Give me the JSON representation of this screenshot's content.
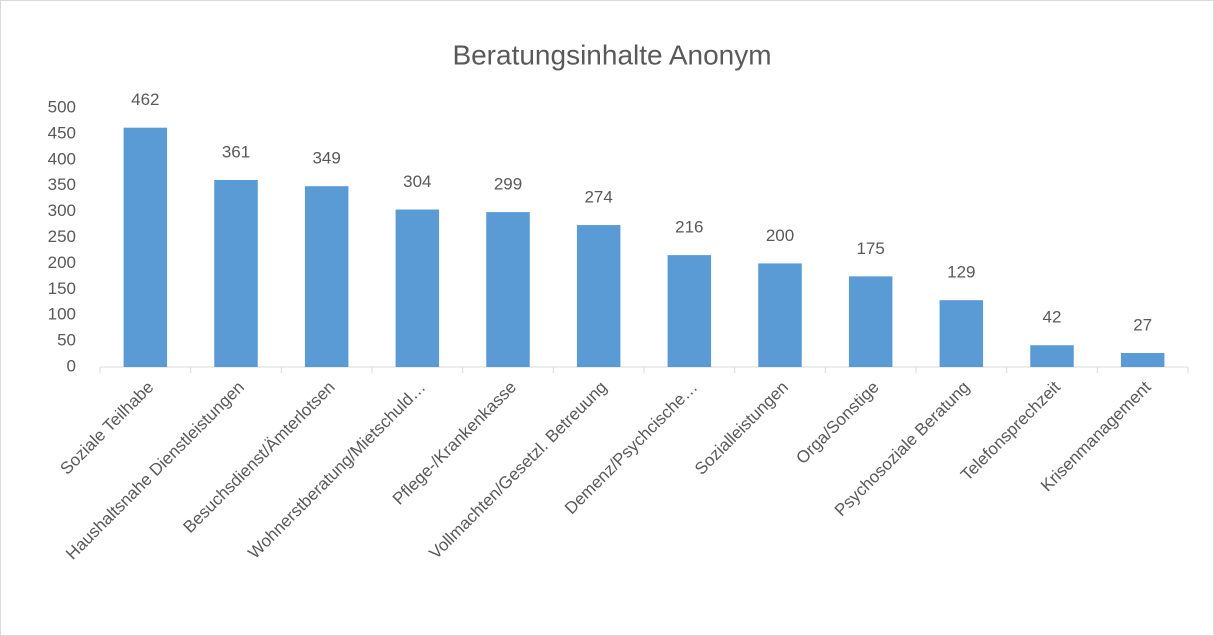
{
  "chart_data": {
    "type": "bar",
    "title": "Beratungsinhalte Anonym",
    "categories": [
      "Soziale Teilhabe",
      "Haushaltsnahe Dienstleistungen",
      "Besuchsdienst/Ämterlotsen",
      "Wohnerstberatung/Mietschuld…",
      "Pflege-/Krankenkasse",
      "Vollmachten/Gesetzl. Betreuung",
      "Demenz/Psychcische…",
      "Sozialleistungen",
      "Orga/Sonstige",
      "Psychosoziale Beratung",
      "Telefonsprechzeit",
      "Krisenmanagement"
    ],
    "values": [
      462,
      361,
      349,
      304,
      299,
      274,
      216,
      200,
      175,
      129,
      42,
      27
    ],
    "color": "#5b9bd5",
    "ylim": [
      0,
      500
    ],
    "yticks": [
      0,
      50,
      100,
      150,
      200,
      250,
      300,
      350,
      400,
      450,
      500
    ],
    "grid": false
  }
}
